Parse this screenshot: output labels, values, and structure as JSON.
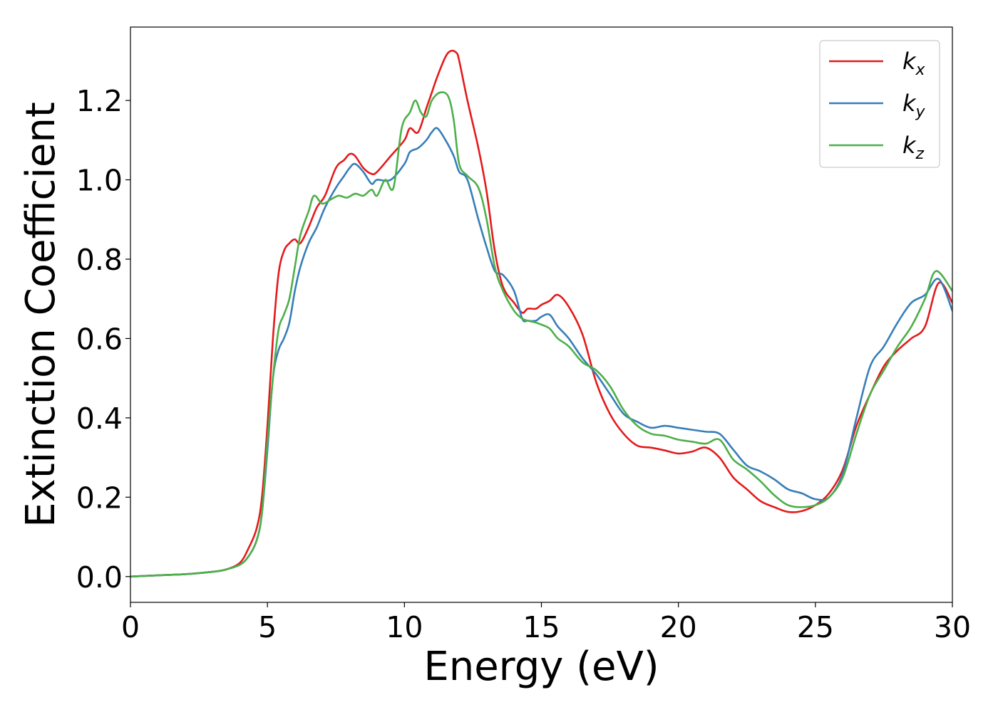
{
  "chart_data": {
    "type": "line",
    "xlabel": "Energy (eV)",
    "ylabel": "Extinction Coefficient",
    "xlim": [
      0,
      30
    ],
    "ylim": [
      -0.065,
      1.385
    ],
    "xticks": [
      0,
      5,
      10,
      15,
      20,
      25,
      30
    ],
    "xtick_labels": [
      "0",
      "5",
      "10",
      "15",
      "20",
      "25",
      "30"
    ],
    "yticks": [
      0.0,
      0.2,
      0.4,
      0.6,
      0.8,
      1.0,
      1.2
    ],
    "ytick_labels": [
      "0.0",
      "0.2",
      "0.4",
      "0.6",
      "0.8",
      "1.0",
      "1.2"
    ],
    "grid": false,
    "legend_position": "top-right",
    "series": [
      {
        "name": "k",
        "subscript": "x",
        "color": "#e41a1c",
        "x": [
          0,
          1,
          2,
          3,
          3.5,
          4,
          4.3,
          4.6,
          4.8,
          5.0,
          5.2,
          5.4,
          5.6,
          5.8,
          6.0,
          6.2,
          6.5,
          6.8,
          7.1,
          7.5,
          7.8,
          8.0,
          8.2,
          8.5,
          8.8,
          9.0,
          9.5,
          10.0,
          10.2,
          10.5,
          10.8,
          11.0,
          11.2,
          11.5,
          11.7,
          11.9,
          12.0,
          12.3,
          12.7,
          13.0,
          13.3,
          13.6,
          14.0,
          14.3,
          14.5,
          14.8,
          15.0,
          15.3,
          15.6,
          16.0,
          16.5,
          17.0,
          17.5,
          18.0,
          18.5,
          19.0,
          19.5,
          20.0,
          20.5,
          21.0,
          21.5,
          22.0,
          22.5,
          23.0,
          23.5,
          24.0,
          24.5,
          25.0,
          25.5,
          26.0,
          26.5,
          27.0,
          27.5,
          28.0,
          28.5,
          29.0,
          29.5,
          30.0
        ],
        "values": [
          0.0,
          0.003,
          0.006,
          0.012,
          0.018,
          0.035,
          0.07,
          0.12,
          0.2,
          0.38,
          0.6,
          0.76,
          0.82,
          0.84,
          0.85,
          0.84,
          0.88,
          0.93,
          0.96,
          1.03,
          1.05,
          1.065,
          1.06,
          1.03,
          1.015,
          1.02,
          1.06,
          1.1,
          1.13,
          1.12,
          1.18,
          1.22,
          1.26,
          1.31,
          1.325,
          1.32,
          1.3,
          1.2,
          1.08,
          0.97,
          0.82,
          0.73,
          0.69,
          0.665,
          0.675,
          0.675,
          0.685,
          0.695,
          0.71,
          0.68,
          0.61,
          0.49,
          0.41,
          0.36,
          0.33,
          0.325,
          0.318,
          0.31,
          0.315,
          0.325,
          0.3,
          0.25,
          0.22,
          0.19,
          0.175,
          0.163,
          0.165,
          0.18,
          0.21,
          0.27,
          0.38,
          0.46,
          0.53,
          0.57,
          0.6,
          0.63,
          0.74,
          0.69
        ]
      },
      {
        "name": "k",
        "subscript": "y",
        "color": "#377eb8",
        "x": [
          0,
          1,
          2,
          3,
          3.5,
          4,
          4.3,
          4.6,
          4.8,
          5.0,
          5.2,
          5.4,
          5.6,
          5.8,
          6.0,
          6.2,
          6.5,
          6.8,
          7.1,
          7.5,
          7.8,
          8.0,
          8.2,
          8.5,
          8.8,
          9.0,
          9.5,
          10.0,
          10.2,
          10.5,
          10.8,
          11.0,
          11.2,
          11.5,
          11.8,
          12.0,
          12.3,
          12.7,
          13.0,
          13.3,
          13.6,
          14.0,
          14.3,
          14.5,
          14.8,
          15.0,
          15.3,
          15.6,
          16.0,
          16.5,
          17.0,
          17.5,
          18.0,
          18.5,
          19.0,
          19.5,
          20.0,
          20.5,
          21.0,
          21.5,
          22.0,
          22.5,
          23.0,
          23.5,
          24.0,
          24.5,
          25.0,
          25.5,
          26.0,
          26.5,
          27.0,
          27.5,
          28.0,
          28.5,
          29.0,
          29.5,
          30.0
        ],
        "values": [
          0.0,
          0.003,
          0.006,
          0.012,
          0.018,
          0.03,
          0.05,
          0.09,
          0.16,
          0.32,
          0.5,
          0.57,
          0.6,
          0.64,
          0.72,
          0.78,
          0.84,
          0.88,
          0.93,
          0.98,
          1.01,
          1.03,
          1.04,
          1.02,
          0.99,
          1.0,
          1.0,
          1.04,
          1.07,
          1.08,
          1.1,
          1.12,
          1.13,
          1.1,
          1.06,
          1.02,
          1.0,
          0.9,
          0.83,
          0.77,
          0.76,
          0.72,
          0.65,
          0.645,
          0.645,
          0.655,
          0.66,
          0.63,
          0.6,
          0.55,
          0.51,
          0.46,
          0.41,
          0.39,
          0.375,
          0.38,
          0.375,
          0.37,
          0.365,
          0.36,
          0.32,
          0.28,
          0.265,
          0.245,
          0.22,
          0.21,
          0.195,
          0.2,
          0.26,
          0.4,
          0.53,
          0.58,
          0.64,
          0.69,
          0.71,
          0.75,
          0.67
        ]
      },
      {
        "name": "k",
        "subscript": "z",
        "color": "#4daf4a",
        "x": [
          0,
          1,
          2,
          3,
          3.5,
          4,
          4.3,
          4.6,
          4.8,
          5.0,
          5.2,
          5.4,
          5.6,
          5.8,
          6.0,
          6.2,
          6.5,
          6.7,
          7.0,
          7.3,
          7.6,
          7.9,
          8.2,
          8.5,
          8.8,
          9.0,
          9.3,
          9.6,
          9.9,
          10.2,
          10.4,
          10.6,
          10.8,
          11.0,
          11.3,
          11.6,
          11.8,
          12.0,
          12.3,
          12.7,
          13.0,
          13.3,
          13.6,
          14.0,
          14.3,
          14.5,
          14.8,
          15.0,
          15.3,
          15.6,
          16.0,
          16.5,
          17.0,
          17.5,
          18.0,
          18.5,
          19.0,
          19.5,
          20.0,
          20.5,
          21.0,
          21.5,
          22.0,
          22.5,
          23.0,
          23.5,
          24.0,
          24.5,
          25.0,
          25.5,
          26.0,
          26.5,
          27.0,
          27.5,
          28.0,
          28.5,
          29.0,
          29.4,
          30.0
        ],
        "values": [
          0.0,
          0.003,
          0.006,
          0.012,
          0.018,
          0.03,
          0.05,
          0.09,
          0.16,
          0.34,
          0.5,
          0.62,
          0.66,
          0.7,
          0.78,
          0.86,
          0.92,
          0.96,
          0.94,
          0.95,
          0.96,
          0.955,
          0.965,
          0.96,
          0.975,
          0.96,
          1.0,
          0.98,
          1.13,
          1.17,
          1.2,
          1.17,
          1.16,
          1.2,
          1.22,
          1.21,
          1.15,
          1.04,
          1.01,
          0.98,
          0.9,
          0.78,
          0.72,
          0.67,
          0.65,
          0.645,
          0.64,
          0.635,
          0.625,
          0.6,
          0.58,
          0.54,
          0.52,
          0.48,
          0.42,
          0.38,
          0.36,
          0.355,
          0.345,
          0.34,
          0.335,
          0.345,
          0.295,
          0.27,
          0.24,
          0.205,
          0.18,
          0.175,
          0.18,
          0.2,
          0.25,
          0.36,
          0.46,
          0.52,
          0.58,
          0.63,
          0.7,
          0.77,
          0.72
        ]
      }
    ]
  }
}
